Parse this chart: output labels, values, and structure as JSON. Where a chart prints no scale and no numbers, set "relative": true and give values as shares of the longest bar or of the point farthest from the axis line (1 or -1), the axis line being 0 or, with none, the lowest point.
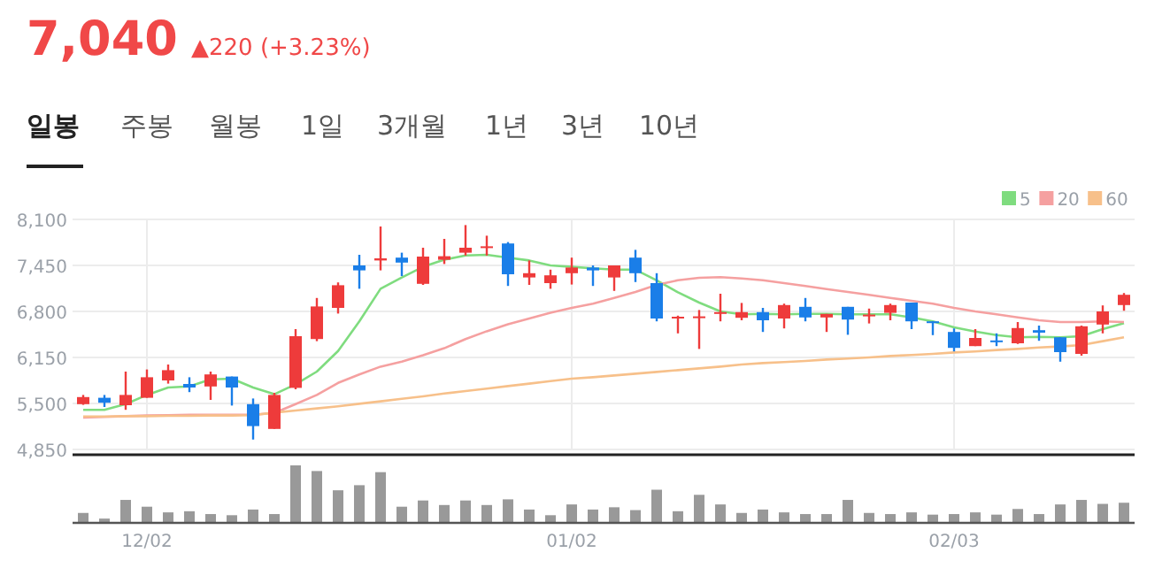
{
  "chart_data": [
    {
      "type": "candlestick",
      "title": "7,040",
      "subtitle": "▲220 (+3.23%)",
      "annotations": [
        "일봉",
        "주봉",
        "월봉",
        "1일",
        "3개월",
        "1년",
        "3년",
        "10년"
      ],
      "categories": [
        null,
        null,
        null,
        null,
        null,
        null,
        null,
        null,
        null,
        null,
        null,
        null,
        null,
        null,
        null,
        null,
        null,
        null,
        null,
        null,
        null,
        null,
        null,
        null,
        null,
        null,
        null,
        null,
        null,
        null,
        null,
        null,
        null,
        null,
        null,
        null,
        null,
        null,
        null,
        null,
        null,
        null,
        null,
        null,
        null,
        null,
        null,
        null,
        null,
        null
      ],
      "ohlc": [
        [
          5490,
          5620,
          5480,
          5590
        ],
        [
          5580,
          5620,
          5450,
          5510
        ],
        [
          5475,
          5950,
          5410,
          5620
        ],
        [
          5580,
          5980,
          5580,
          5870
        ],
        [
          5825,
          6050,
          5780,
          5970
        ],
        [
          5775,
          5870,
          5660,
          5725
        ],
        [
          5740,
          5950,
          5550,
          5910
        ],
        [
          5880,
          5880,
          5470,
          5725
        ],
        [
          5490,
          5570,
          4990,
          5180
        ],
        [
          5140,
          5650,
          5140,
          5620
        ],
        [
          5720,
          6550,
          5700,
          6450
        ],
        [
          6410,
          6990,
          6380,
          6870
        ],
        [
          6850,
          7210,
          6770,
          7170
        ],
        [
          7450,
          7600,
          7120,
          7380
        ],
        [
          7520,
          8000,
          7380,
          7550
        ],
        [
          7560,
          7630,
          7300,
          7490
        ],
        [
          7190,
          7700,
          7175,
          7575
        ],
        [
          7530,
          7825,
          7470,
          7580
        ],
        [
          7630,
          8020,
          7590,
          7700
        ],
        [
          7710,
          7870,
          7590,
          7720
        ],
        [
          7760,
          7780,
          7160,
          7325
        ],
        [
          7280,
          7520,
          7175,
          7340
        ],
        [
          7200,
          7390,
          7120,
          7310
        ],
        [
          7340,
          7560,
          7180,
          7420
        ],
        [
          7420,
          7450,
          7160,
          7380
        ],
        [
          7280,
          7450,
          7090,
          7450
        ],
        [
          7560,
          7670,
          7215,
          7340
        ],
        [
          7200,
          7340,
          6660,
          6700
        ],
        [
          6700,
          6740,
          6490,
          6725
        ],
        [
          6710,
          6820,
          6270,
          6730
        ],
        [
          6770,
          7050,
          6660,
          6790
        ],
        [
          6710,
          6920,
          6675,
          6790
        ],
        [
          6790,
          6850,
          6510,
          6675
        ],
        [
          6700,
          6910,
          6560,
          6890
        ],
        [
          6865,
          6990,
          6660,
          6715
        ],
        [
          6715,
          6765,
          6510,
          6765
        ],
        [
          6865,
          6865,
          6470,
          6685
        ],
        [
          6740,
          6840,
          6630,
          6755
        ],
        [
          6780,
          6910,
          6675,
          6890
        ],
        [
          6925,
          6925,
          6550,
          6660
        ],
        [
          6660,
          6660,
          6465,
          6640
        ],
        [
          6510,
          6560,
          6235,
          6285
        ],
        [
          6310,
          6550,
          6310,
          6425
        ],
        [
          6390,
          6490,
          6310,
          6365
        ],
        [
          6350,
          6650,
          6340,
          6565
        ],
        [
          6535,
          6600,
          6385,
          6500
        ],
        [
          6435,
          6435,
          6090,
          6225
        ],
        [
          6200,
          6600,
          6175,
          6590
        ],
        [
          6615,
          6885,
          6490,
          6800
        ],
        [
          6890,
          7060,
          6810,
          7035
        ]
      ],
      "colors": [
        "#ee3b3b",
        "#1a7ee8",
        "#ee3b3b",
        "#ee3b3b",
        "#ee3b3b",
        "#1a7ee8",
        "#ee3b3b",
        "#1a7ee8",
        "#1a7ee8",
        "#ee3b3b",
        "#ee3b3b",
        "#ee3b3b",
        "#ee3b3b",
        "#1a7ee8",
        "#ee3b3b",
        "#1a7ee8",
        "#ee3b3b",
        "#ee3b3b",
        "#ee3b3b",
        "#ee3b3b",
        "#1a7ee8",
        "#ee3b3b",
        "#ee3b3b",
        "#ee3b3b",
        "#1a7ee8",
        "#ee3b3b",
        "#1a7ee8",
        "#1a7ee8",
        "#ee3b3b",
        "#ee3b3b",
        "#ee3b3b",
        "#ee3b3b",
        "#1a7ee8",
        "#ee3b3b",
        "#1a7ee8",
        "#ee3b3b",
        "#1a7ee8",
        "#ee3b3b",
        "#ee3b3b",
        "#1a7ee8",
        "#1a7ee8",
        "#1a7ee8",
        "#ee3b3b",
        "#1a7ee8",
        "#ee3b3b",
        "#1a7ee8",
        "#1a7ee8",
        "#ee3b3b",
        "#ee3b3b",
        "#ee3b3b"
      ],
      "series": [
        {
          "name": "5",
          "type": "line",
          "color": "#7fdc7f",
          "values": [
            5410,
            5410,
            5490,
            5620,
            5725,
            5740,
            5840,
            5850,
            5725,
            5630,
            5770,
            5950,
            6240,
            6660,
            7120,
            7280,
            7430,
            7530,
            7590,
            7600,
            7560,
            7520,
            7450,
            7430,
            7410,
            7390,
            7390,
            7240,
            7070,
            6925,
            6800,
            6760,
            6765,
            6760,
            6765,
            6765,
            6760,
            6760,
            6760,
            6715,
            6660,
            6575,
            6515,
            6465,
            6435,
            6440,
            6435,
            6450,
            6550,
            6635
          ]
        },
        {
          "name": "20",
          "type": "line",
          "color": "#f5a0a0",
          "values": [
            5300,
            5310,
            5320,
            5330,
            5335,
            5340,
            5340,
            5340,
            5340,
            5365,
            5490,
            5620,
            5790,
            5910,
            6020,
            6090,
            6180,
            6280,
            6410,
            6520,
            6620,
            6700,
            6780,
            6850,
            6910,
            6990,
            7075,
            7175,
            7240,
            7275,
            7285,
            7265,
            7240,
            7200,
            7160,
            7115,
            7075,
            7035,
            6990,
            6950,
            6910,
            6850,
            6800,
            6760,
            6715,
            6675,
            6650,
            6650,
            6660,
            6650
          ]
        },
        {
          "name": "60",
          "type": "line",
          "color": "#f7c08a",
          "values": [
            5315,
            5315,
            5320,
            5320,
            5325,
            5325,
            5330,
            5330,
            5335,
            5370,
            5400,
            5430,
            5460,
            5495,
            5530,
            5565,
            5600,
            5640,
            5675,
            5710,
            5745,
            5780,
            5815,
            5850,
            5870,
            5895,
            5920,
            5945,
            5970,
            5995,
            6020,
            6050,
            6070,
            6085,
            6100,
            6120,
            6135,
            6150,
            6170,
            6185,
            6200,
            6220,
            6235,
            6255,
            6270,
            6290,
            6305,
            6325,
            6380,
            6435
          ]
        }
      ],
      "ylim": [
        4850,
        8100
      ],
      "yticks": [
        {
          "value": 4850,
          "label": "4,850"
        },
        {
          "value": 5500,
          "label": "5,500"
        },
        {
          "value": 6150,
          "label": "6,150"
        },
        {
          "value": 6800,
          "label": "6,800"
        },
        {
          "value": 7450,
          "label": "7,450"
        },
        {
          "value": 8100,
          "label": "8,100"
        }
      ],
      "grid": true,
      "legend": "top right",
      "tick_labels": "y"
    },
    {
      "type": "bar",
      "relative": true,
      "color": "#999999",
      "tick_labels": "x",
      "categories": [
        null,
        null,
        null,
        "12/02",
        null,
        null,
        null,
        null,
        null,
        null,
        null,
        null,
        null,
        null,
        null,
        null,
        null,
        null,
        null,
        null,
        null,
        null,
        null,
        "01/02",
        null,
        null,
        null,
        null,
        null,
        null,
        null,
        null,
        null,
        null,
        null,
        null,
        null,
        null,
        null,
        null,
        null,
        "02/03",
        null,
        null,
        null,
        null,
        null,
        null,
        null,
        null
      ],
      "values": [
        0.16,
        0.06,
        0.39,
        0.27,
        0.17,
        0.19,
        0.14,
        0.12,
        0.22,
        0.14,
        1,
        0.9,
        0.56,
        0.65,
        0.88,
        0.27,
        0.38,
        0.3,
        0.38,
        0.3,
        0.4,
        0.22,
        0.12,
        0.31,
        0.22,
        0.26,
        0.21,
        0.57,
        0.19,
        0.48,
        0.31,
        0.16,
        0.22,
        0.17,
        0.14,
        0.14,
        0.39,
        0.16,
        0.14,
        0.17,
        0.13,
        0.14,
        0.17,
        0.13,
        0.23,
        0.14,
        0.31,
        0.39,
        0.32,
        0.34
      ]
    }
  ]
}
